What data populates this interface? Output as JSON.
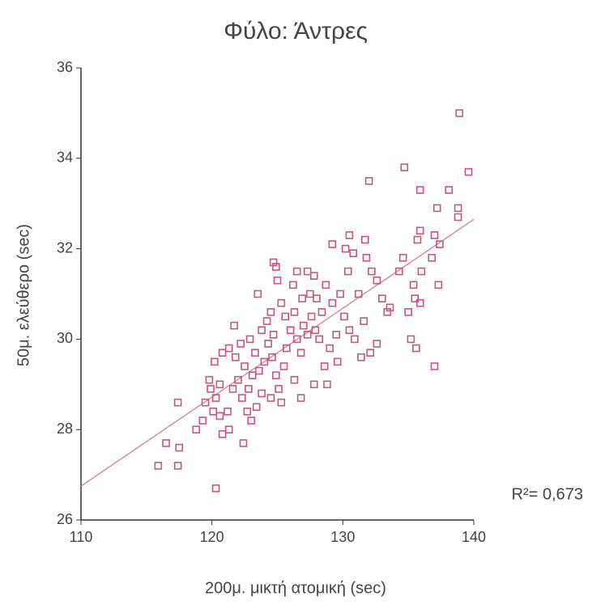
{
  "chart_data": {
    "type": "scatter",
    "title": "Φύλο: Άντρες",
    "x_label": "200μ. μικτή ατομική (sec)",
    "y_label": "50μ. ελεύθερο (sec)",
    "annotation": "R²= 0,673",
    "xlim": [
      110,
      140
    ],
    "xticks": [
      110,
      120,
      130,
      140
    ],
    "ylim": [
      26,
      36
    ],
    "yticks": [
      26,
      28,
      30,
      32,
      34,
      36
    ],
    "series": [
      {
        "color": "#c8557c",
        "x": [
          138.9,
          134.7,
          132.0,
          135.9,
          139.6,
          138.1,
          138.8,
          138.8,
          137.2,
          135.9,
          135.7,
          137.4,
          129.2,
          130.5,
          131.7,
          124.7,
          127.3,
          115.9,
          117.4,
          120.3,
          116.5,
          117.5,
          122.4,
          137.0,
          117.4,
          119.5,
          120.3,
          119.8,
          120.6,
          120.1,
          120.6,
          121.2,
          121.3,
          120.8,
          120.2,
          120.8,
          121.3,
          119.3,
          118.8,
          119.9,
          121.8,
          122.0,
          121.6,
          122.3,
          122.8,
          122.5,
          122.2,
          122.9,
          123.3,
          123.1,
          122.7,
          123.0,
          123.4,
          123.8,
          123.6,
          124.0,
          124.3,
          124.7,
          124.2,
          123.8,
          124.6,
          124.9,
          125.1,
          125.3,
          124.5,
          125.5,
          125.7,
          126.0,
          125.6,
          126.3,
          126.5,
          126.8,
          127.0,
          127.3,
          127.6,
          127.9,
          128.2,
          128.4,
          128.0,
          127.5,
          126.9,
          125.3,
          125.0,
          124.5,
          123.5,
          121.7,
          126.2,
          127.8,
          128.7,
          129.2,
          129.8,
          130.1,
          130.5,
          129.5,
          129.0,
          128.6,
          127.8,
          126.3,
          126.8,
          130.4,
          131.2,
          131.6,
          132.2,
          132.6,
          131.8,
          130.8,
          130.2,
          132.1,
          132.6,
          131.4,
          133.0,
          133.6,
          134.3,
          134.6,
          135.0,
          135.5,
          135.9,
          135.4,
          136.0,
          136.8,
          137.3,
          137.0,
          135.2,
          135.6,
          133.4,
          128.8,
          129.6,
          130.9,
          124.9,
          126.5
        ],
        "values": [
          35.0,
          33.8,
          33.5,
          33.3,
          33.7,
          33.3,
          32.9,
          32.7,
          32.9,
          32.4,
          32.2,
          32.1,
          32.1,
          32.3,
          32.2,
          31.7,
          31.5,
          27.2,
          27.2,
          26.7,
          27.7,
          27.6,
          27.7,
          29.4,
          28.6,
          28.6,
          28.7,
          29.1,
          29.0,
          28.4,
          28.3,
          28.4,
          28.0,
          27.9,
          29.5,
          29.7,
          29.8,
          28.2,
          28.0,
          28.9,
          29.6,
          29.1,
          28.9,
          28.7,
          28.9,
          29.4,
          29.9,
          30.0,
          29.7,
          29.2,
          28.4,
          28.2,
          28.5,
          28.8,
          29.3,
          29.5,
          29.9,
          30.1,
          30.4,
          30.2,
          29.6,
          29.2,
          28.9,
          28.6,
          28.7,
          29.4,
          29.8,
          30.2,
          30.5,
          30.6,
          30.0,
          29.7,
          30.3,
          30.1,
          30.5,
          30.2,
          30.0,
          30.6,
          30.9,
          31.0,
          30.9,
          30.8,
          31.3,
          30.6,
          31.0,
          30.3,
          31.2,
          31.4,
          31.2,
          30.8,
          31.0,
          30.5,
          30.2,
          30.1,
          29.8,
          29.4,
          29.0,
          29.1,
          28.7,
          31.5,
          31.0,
          30.4,
          31.5,
          31.3,
          31.8,
          31.9,
          32.0,
          29.7,
          29.9,
          29.6,
          30.9,
          30.7,
          31.5,
          31.8,
          30.6,
          30.9,
          30.8,
          31.2,
          31.5,
          31.8,
          31.2,
          32.3,
          30.0,
          29.8,
          30.6,
          29.0,
          29.5,
          30.0,
          31.6,
          31.5
        ]
      }
    ],
    "trendline": {
      "color": "#d98aa3",
      "x": [
        110,
        140
      ],
      "y": [
        26.75,
        32.65
      ]
    }
  }
}
